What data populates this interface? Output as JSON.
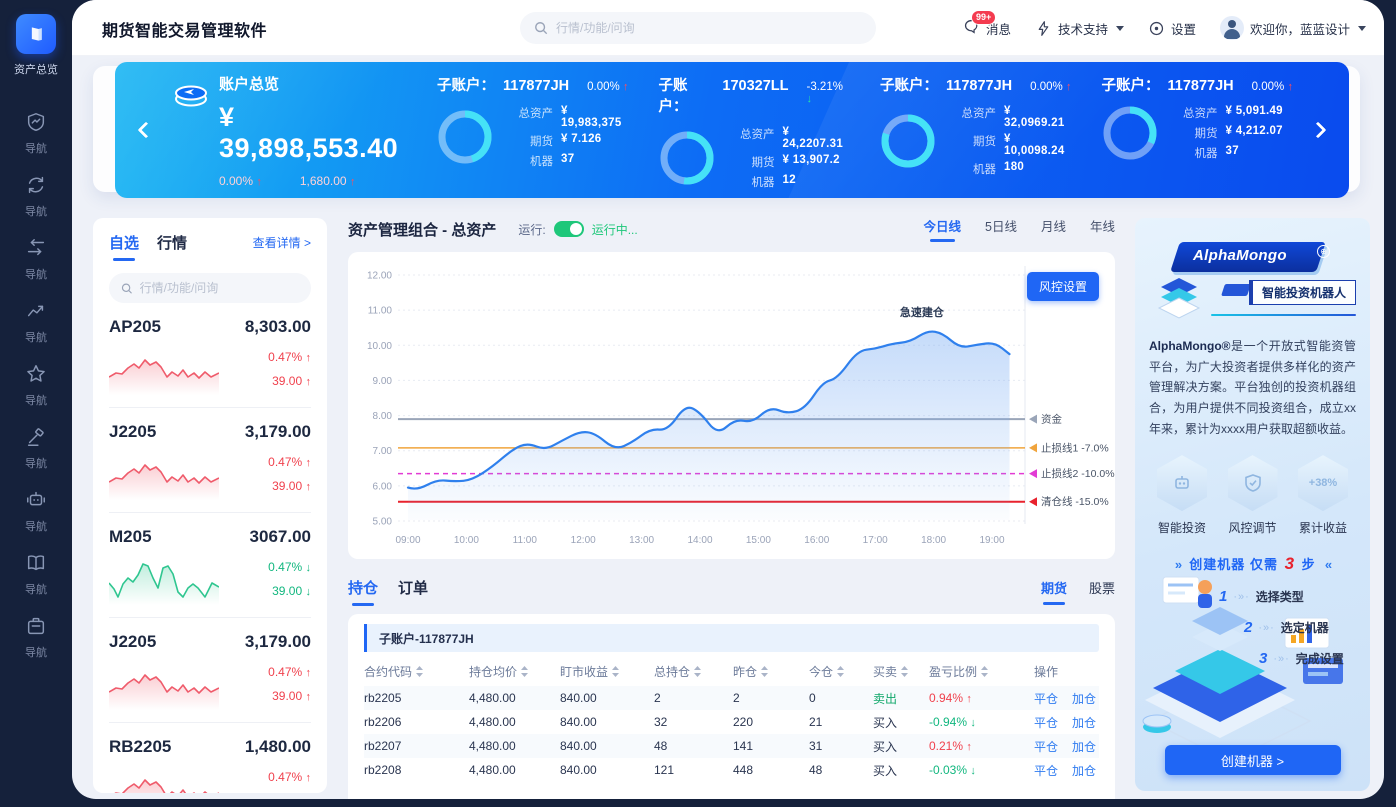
{
  "colors": {
    "accent_blue": "#2468f2",
    "banner_blue_start": "#16b4f2",
    "banner_blue_end": "#0a4bee",
    "up_red": "#f0414d",
    "down_green": "#12b77f",
    "sidebar_navy": "#15213b",
    "donut_cyan": "#45e2f7",
    "toggle_green": "#1ec77a"
  },
  "app": {
    "title": "期货智能交易管理软件"
  },
  "header": {
    "search_placeholder": "行情/功能/问询",
    "messages_label": "消息",
    "messages_badge": "99+",
    "support_label": "技术支持",
    "settings_label": "设置",
    "welcome": "欢迎你，蓝蓝设计"
  },
  "sidebar": {
    "active": {
      "icon": "portfolio-icon",
      "label": "资产总览"
    },
    "items": [
      {
        "icon": "shield-chart-icon",
        "label": "导航"
      },
      {
        "icon": "sync-icon",
        "label": "导航"
      },
      {
        "icon": "transfer-icon",
        "label": "导航"
      },
      {
        "icon": "trend-icon",
        "label": "导航"
      },
      {
        "icon": "star-icon",
        "label": "导航"
      },
      {
        "icon": "gavel-icon",
        "label": "导航"
      },
      {
        "icon": "robot-icon",
        "label": "导航"
      },
      {
        "icon": "book-icon",
        "label": "导航"
      },
      {
        "icon": "briefcase-icon",
        "label": "导航"
      }
    ]
  },
  "banner": {
    "overview": {
      "title": "账户总览",
      "amount": "¥ 39,898,553.40",
      "pct": "0.00%",
      "pct_dir": "up",
      "chg": "1,680.00",
      "chg_dir": "up"
    },
    "stat_labels": {
      "assets": "总资产",
      "futures": "期货",
      "robots": "机器"
    },
    "sub_label": "子账户：",
    "subaccounts": [
      {
        "id": "117877JH",
        "pct": "0.00%",
        "dir": "up",
        "assets": "¥ 19,983,375",
        "futures": "¥ 7.126",
        "robots": "37",
        "ring": 0.45
      },
      {
        "id": "170327LL",
        "pct": "-3.21%",
        "dir": "down",
        "assets": "¥ 24,2207.31",
        "futures": "¥ 13,907.2",
        "robots": "12",
        "ring": 0.52
      },
      {
        "id": "117877JH",
        "pct": "0.00%",
        "dir": "up",
        "assets": "¥ 32,0969.21",
        "futures": "¥ 10,0098.24",
        "robots": "180",
        "ring": 0.8
      },
      {
        "id": "117877JH",
        "pct": "0.00%",
        "dir": "up",
        "assets": "¥ 5,091.49",
        "futures": "¥ 4,212.07",
        "robots": "37",
        "ring": 0.32
      }
    ]
  },
  "watchlist": {
    "tabs": [
      "自选",
      "行情"
    ],
    "active_tab": "自选",
    "detail_link": "查看详情 >",
    "search_placeholder": "行情/功能/问询",
    "items": [
      {
        "name": "AP205",
        "price": "8,303.00",
        "pct": "0.47%",
        "chg": "39.00",
        "dir": "up"
      },
      {
        "name": "J2205",
        "price": "3,179.00",
        "pct": "0.47%",
        "chg": "39.00",
        "dir": "up"
      },
      {
        "name": "M205",
        "price": "3067.00",
        "pct": "0.47%",
        "chg": "39.00",
        "dir": "down"
      },
      {
        "name": "J2205",
        "price": "3,179.00",
        "pct": "0.47%",
        "chg": "39.00",
        "dir": "up"
      },
      {
        "name": "RB2205",
        "price": "1,480.00",
        "pct": "0.47%",
        "chg": "39.00",
        "dir": "up"
      }
    ]
  },
  "portfolio": {
    "title": "资产管理组合 - 总资产",
    "run_label": "运行:",
    "run_status": "运行中...",
    "period_tabs": [
      "今日线",
      "5日线",
      "月线",
      "年线"
    ],
    "active_period": "今日线",
    "risk_button": "风控设置"
  },
  "chart_data": {
    "type": "line",
    "title": "资产管理组合 - 总资产",
    "x_ticks": [
      "09:00",
      "10:00",
      "11:00",
      "12:00",
      "13:00",
      "14:00",
      "15:00",
      "16:00",
      "17:00",
      "18:00",
      "19:00"
    ],
    "y_ticks": [
      "12.00",
      "11.00",
      "10.00",
      "9.00",
      "8.00",
      "7.00",
      "6.00",
      "5.00"
    ],
    "xlim": [
      9,
      19.55
    ],
    "ylim": [
      5,
      12
    ],
    "grid": true,
    "series": [
      {
        "name": "总资产",
        "color": "#2f80ed",
        "points": [
          [
            9.0,
            5.95
          ],
          [
            9.15,
            5.87
          ],
          [
            9.5,
            6.18
          ],
          [
            9.8,
            6.12
          ],
          [
            10.1,
            6.17
          ],
          [
            10.45,
            6.55
          ],
          [
            10.8,
            7.05
          ],
          [
            11.05,
            7.22
          ],
          [
            11.35,
            7.02
          ],
          [
            11.65,
            7.3
          ],
          [
            11.95,
            7.55
          ],
          [
            12.2,
            7.5
          ],
          [
            12.55,
            7.02
          ],
          [
            12.85,
            7.25
          ],
          [
            13.15,
            7.62
          ],
          [
            13.45,
            7.58
          ],
          [
            13.75,
            8.3
          ],
          [
            14.0,
            8.1
          ],
          [
            14.3,
            7.45
          ],
          [
            14.6,
            7.9
          ],
          [
            14.9,
            7.8
          ],
          [
            15.2,
            8.25
          ],
          [
            15.5,
            8.05
          ],
          [
            15.8,
            8.2
          ],
          [
            16.1,
            8.95
          ],
          [
            16.35,
            9.05
          ],
          [
            16.7,
            9.85
          ],
          [
            17.0,
            9.9
          ],
          [
            17.3,
            10.05
          ],
          [
            17.6,
            10.1
          ],
          [
            17.9,
            10.42
          ],
          [
            18.15,
            10.35
          ],
          [
            18.45,
            9.92
          ],
          [
            18.75,
            10.02
          ],
          [
            19.05,
            10.08
          ],
          [
            19.3,
            9.75
          ]
        ]
      }
    ],
    "ref_lines": [
      {
        "label": "资金",
        "value": 7.9,
        "color": "#9aa5b8",
        "style": "solid",
        "width": 2
      },
      {
        "label": "止损线1 -7.0%",
        "value": 7.08,
        "color": "#f0a43c",
        "style": "solid",
        "width": 1.5
      },
      {
        "label": "止损线2 -10.0%",
        "value": 6.35,
        "color": "#e23bd4",
        "style": "dashed",
        "width": 1.5
      },
      {
        "label": "清仓线 -15.0%",
        "value": 5.55,
        "color": "#e8222d",
        "style": "solid",
        "width": 2
      }
    ],
    "annotation": {
      "text": "急速建仓",
      "x": 17.8,
      "y": 10.55
    }
  },
  "positions": {
    "tabs": [
      "持仓",
      "订单"
    ],
    "active_tab": "持仓",
    "market_tabs": [
      "期货",
      "股票"
    ],
    "active_market": "期货",
    "subaccount": "子账户-117877JH",
    "columns": [
      {
        "label": "合约代码",
        "sortable": true
      },
      {
        "label": "持仓均价",
        "sortable": true
      },
      {
        "label": "盯市收益",
        "sortable": true
      },
      {
        "label": "总持仓",
        "sortable": true
      },
      {
        "label": "昨仓",
        "sortable": true
      },
      {
        "label": "今仓",
        "sortable": true
      },
      {
        "label": "买卖",
        "sortable": true
      },
      {
        "label": "盈亏比例",
        "sortable": true
      },
      {
        "label": "操作",
        "sortable": false
      }
    ],
    "rows": [
      {
        "code": "rb2205",
        "avg": "4,480.00",
        "pnl": "840.00",
        "total": "2",
        "yesterday": "2",
        "today": "0",
        "side": "卖出",
        "side_color": "green",
        "ratio": "0.94%",
        "dir": "up",
        "actions": [
          "平仓",
          "加仓"
        ]
      },
      {
        "code": "rb2206",
        "avg": "4,480.00",
        "pnl": "840.00",
        "total": "32",
        "yesterday": "220",
        "today": "21",
        "side": "买入",
        "side_color": "dark",
        "ratio": "-0.94%",
        "dir": "down",
        "actions": [
          "平仓",
          "加仓"
        ]
      },
      {
        "code": "rb2207",
        "avg": "4,480.00",
        "pnl": "840.00",
        "total": "48",
        "yesterday": "141",
        "today": "31",
        "side": "买入",
        "side_color": "dark",
        "ratio": "0.21%",
        "dir": "up",
        "actions": [
          "平仓",
          "加仓"
        ]
      },
      {
        "code": "rb2208",
        "avg": "4,480.00",
        "pnl": "840.00",
        "total": "121",
        "yesterday": "448",
        "today": "48",
        "side": "买入",
        "side_color": "dark",
        "ratio": "-0.03%",
        "dir": "down",
        "actions": [
          "平仓",
          "加仓"
        ]
      }
    ]
  },
  "promo": {
    "brand": "AlphaMongo",
    "subtitle": "智能投资机器人",
    "description_bold": "AlphaMongo®",
    "description": "是一个开放式智能资管平台，为广大投资者提供多样化的资产管理解决方案。平台独创的投资机器组合，为用户提供不同投资组合，成立xx年来，累计为xxxx用户获取超额收益。",
    "features": [
      {
        "icon": "robot-icon",
        "label": "智能投资"
      },
      {
        "icon": "shield-icon",
        "label": "风控调节"
      },
      {
        "icon": "percent-badge",
        "badge": "+38%",
        "label": "累计收益"
      }
    ],
    "create_line": {
      "prefix": "创建机器",
      "mid": "仅需",
      "count": "3",
      "suffix": "步"
    },
    "steps": [
      {
        "num": "1",
        "label": "选择类型"
      },
      {
        "num": "2",
        "label": "选定机器"
      },
      {
        "num": "3",
        "label": "完成设置"
      }
    ],
    "cta": "创建机器 >"
  }
}
